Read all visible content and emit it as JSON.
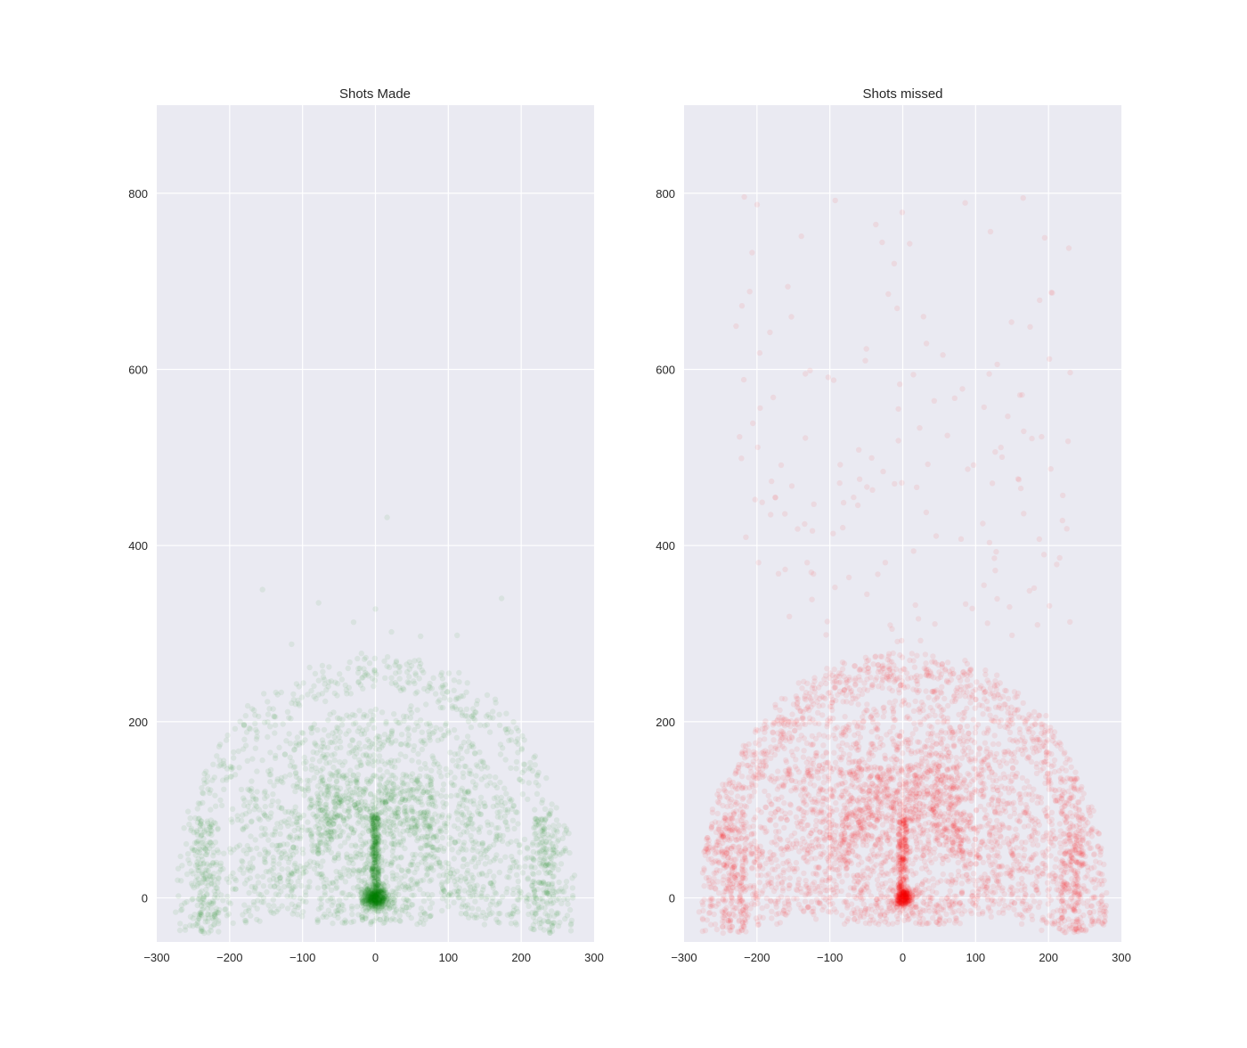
{
  "colors": {
    "axes_background": "#eaeaf2",
    "grid": "#ffffff",
    "made": "#008000",
    "missed": "#ff0000"
  },
  "chart_data": [
    {
      "type": "scatter",
      "title": "Shots Made",
      "xlabel": "",
      "ylabel": "",
      "xlim": [
        -300,
        300
      ],
      "ylim": [
        -50,
        900
      ],
      "xticks": [
        -300,
        -200,
        -100,
        0,
        100,
        200,
        300
      ],
      "xtick_labels": [
        "−300",
        "−200",
        "−100",
        "0",
        "100",
        "200",
        "300"
      ],
      "yticks": [
        0,
        200,
        400,
        600,
        800
      ],
      "ytick_labels": [
        "0",
        "200",
        "400",
        "600",
        "800"
      ],
      "grid": true,
      "legend": "none",
      "color": "#008000",
      "alpha": 0.07,
      "seed": 7,
      "clusters": [
        {
          "type": "rim",
          "n": 420,
          "x": 0,
          "y": 0,
          "sd": 9
        },
        {
          "type": "lane",
          "n": 320,
          "x_range": [
            -5,
            5
          ],
          "y_range": [
            0,
            95
          ]
        },
        {
          "type": "paint",
          "n": 700,
          "x_range": [
            -80,
            80
          ],
          "y_range": [
            -30,
            140
          ]
        },
        {
          "type": "midrange",
          "n": 1400,
          "r_range": [
            90,
            220
          ]
        },
        {
          "type": "corner",
          "n": 160,
          "x_range": [
            -245,
            -215
          ],
          "y_range": [
            -40,
            90
          ]
        },
        {
          "type": "corner",
          "n": 160,
          "x_range": [
            215,
            245
          ],
          "y_range": [
            -40,
            90
          ]
        },
        {
          "type": "three",
          "n": 520,
          "r_range": [
            235,
            275
          ]
        },
        {
          "type": "far",
          "n": 10,
          "points": [
            [
              16,
              432
            ],
            [
              -155,
              350
            ],
            [
              173,
              340
            ],
            [
              -78,
              335
            ],
            [
              0,
              328
            ],
            [
              22,
              302
            ],
            [
              -115,
              288
            ],
            [
              62,
              297
            ],
            [
              -30,
              313
            ],
            [
              112,
              298
            ]
          ]
        }
      ]
    },
    {
      "type": "scatter",
      "title": "Shots missed",
      "xlabel": "",
      "ylabel": "",
      "xlim": [
        -300,
        300
      ],
      "ylim": [
        -50,
        900
      ],
      "xticks": [
        -300,
        -200,
        -100,
        0,
        100,
        200,
        300
      ],
      "xtick_labels": [
        "−300",
        "−200",
        "−100",
        "0",
        "100",
        "200",
        "300"
      ],
      "yticks": [
        0,
        200,
        400,
        600,
        800
      ],
      "ytick_labels": [
        "0",
        "200",
        "400",
        "600",
        "800"
      ],
      "grid": true,
      "legend": "none",
      "color": "#ff0000",
      "alpha": 0.07,
      "seed": 13,
      "clusters": [
        {
          "type": "rim",
          "n": 260,
          "x": 0,
          "y": 0,
          "sd": 7
        },
        {
          "type": "lane",
          "n": 220,
          "x_range": [
            -6,
            6
          ],
          "y_range": [
            0,
            90
          ]
        },
        {
          "type": "paint",
          "n": 900,
          "x_range": [
            -85,
            85
          ],
          "y_range": [
            -30,
            150
          ]
        },
        {
          "type": "midrange",
          "n": 2000,
          "r_range": [
            90,
            225
          ]
        },
        {
          "type": "corner",
          "n": 200,
          "x_range": [
            -248,
            -215
          ],
          "y_range": [
            -40,
            95
          ]
        },
        {
          "type": "corner",
          "n": 200,
          "x_range": [
            215,
            248
          ],
          "y_range": [
            -40,
            95
          ]
        },
        {
          "type": "three",
          "n": 1100,
          "r_range": [
            235,
            280
          ]
        },
        {
          "type": "far",
          "n": 160,
          "x_range": [
            -230,
            230
          ],
          "y_range": [
            290,
            800
          ]
        }
      ]
    }
  ]
}
